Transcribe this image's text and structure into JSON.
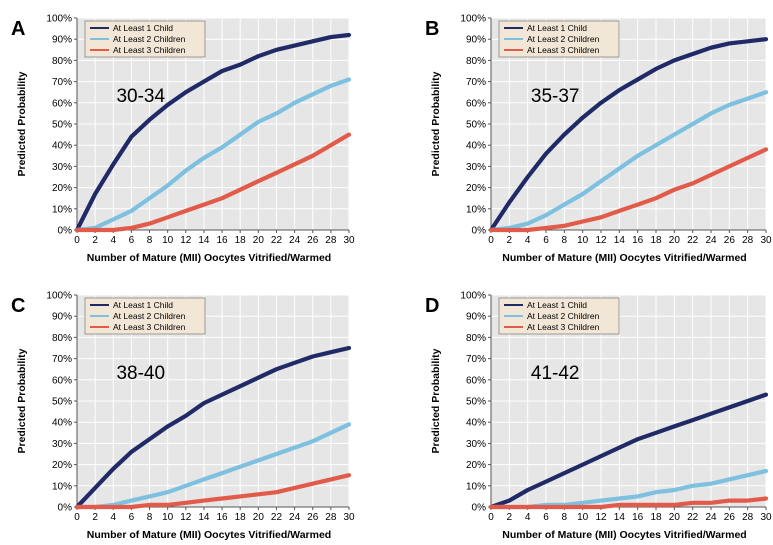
{
  "colors": {
    "series1": "#202a66",
    "series2": "#7ec0e0",
    "series3": "#e15a4a",
    "plot_bg": "#e6e6e6",
    "grid": "#ffffff",
    "legend_bg": "#f2e6d6"
  },
  "chart_data": [
    {
      "type": "line",
      "panel": "A",
      "age_group": "30-34",
      "xlabel": "Number of Mature (MII) Oocytes Vitrified/Warmed",
      "ylabel": "Predicted Probability",
      "xlim": [
        0,
        30
      ],
      "ylim": [
        0,
        100
      ],
      "x_ticks": [
        0,
        2,
        4,
        6,
        8,
        10,
        12,
        14,
        16,
        18,
        20,
        22,
        24,
        26,
        28,
        30
      ],
      "y_ticks": [
        "0%",
        "10%",
        "20%",
        "30%",
        "40%",
        "50%",
        "60%",
        "70%",
        "80%",
        "90%",
        "100%"
      ],
      "grid": true,
      "legend_position": "top-left",
      "x": [
        0,
        2,
        4,
        6,
        8,
        10,
        12,
        14,
        16,
        18,
        20,
        22,
        24,
        26,
        28,
        30
      ],
      "series": [
        {
          "name": "At Least 1 Child",
          "values": [
            0,
            17,
            31,
            44,
            52,
            59,
            65,
            70,
            75,
            78,
            82,
            85,
            87,
            89,
            91,
            92
          ]
        },
        {
          "name": "At Least 2 Children",
          "values": [
            0,
            1,
            5,
            9,
            15,
            21,
            28,
            34,
            39,
            45,
            51,
            55,
            60,
            64,
            68,
            71
          ]
        },
        {
          "name": "At Least 3 Children",
          "values": [
            0,
            0,
            0,
            1,
            3,
            6,
            9,
            12,
            15,
            19,
            23,
            27,
            31,
            35,
            40,
            45
          ]
        }
      ]
    },
    {
      "type": "line",
      "panel": "B",
      "age_group": "35-37",
      "xlabel": "Number of Mature (MII) Oocytes Vitrified/Warmed",
      "ylabel": "Predicted Probability",
      "xlim": [
        0,
        30
      ],
      "ylim": [
        0,
        100
      ],
      "x_ticks": [
        0,
        2,
        4,
        6,
        8,
        10,
        12,
        14,
        16,
        18,
        20,
        22,
        24,
        26,
        28,
        30
      ],
      "y_ticks": [
        "0%",
        "10%",
        "20%",
        "30%",
        "40%",
        "50%",
        "60%",
        "70%",
        "80%",
        "90%",
        "100%"
      ],
      "grid": true,
      "legend_position": "top-left",
      "x": [
        0,
        2,
        4,
        6,
        8,
        10,
        12,
        14,
        16,
        18,
        20,
        22,
        24,
        26,
        28,
        30
      ],
      "series": [
        {
          "name": "At Least 1 Child",
          "values": [
            0,
            13,
            25,
            36,
            45,
            53,
            60,
            66,
            71,
            76,
            80,
            83,
            86,
            88,
            89,
            90
          ]
        },
        {
          "name": "At Least 2 Children",
          "values": [
            0,
            1,
            3,
            7,
            12,
            17,
            23,
            29,
            35,
            40,
            45,
            50,
            55,
            59,
            62,
            65
          ]
        },
        {
          "name": "At Least 3 Children",
          "values": [
            0,
            0,
            0,
            1,
            2,
            4,
            6,
            9,
            12,
            15,
            19,
            22,
            26,
            30,
            34,
            38
          ]
        }
      ]
    },
    {
      "type": "line",
      "panel": "C",
      "age_group": "38-40",
      "xlabel": "Number of Mature (MII) Oocytes Vitrified/Warmed",
      "ylabel": "Predicted Probability",
      "xlim": [
        0,
        30
      ],
      "ylim": [
        0,
        100
      ],
      "x_ticks": [
        0,
        2,
        4,
        6,
        8,
        10,
        12,
        14,
        16,
        18,
        20,
        22,
        24,
        26,
        28,
        30
      ],
      "y_ticks": [
        "0%",
        "10%",
        "20%",
        "30%",
        "40%",
        "50%",
        "60%",
        "70%",
        "80%",
        "90%",
        "100%"
      ],
      "grid": true,
      "legend_position": "top-left",
      "x": [
        0,
        2,
        4,
        6,
        8,
        10,
        12,
        14,
        16,
        18,
        20,
        22,
        24,
        26,
        28,
        30
      ],
      "series": [
        {
          "name": "At Least 1 Child",
          "values": [
            0,
            9,
            18,
            26,
            32,
            38,
            43,
            49,
            53,
            57,
            61,
            65,
            68,
            71,
            73,
            75
          ]
        },
        {
          "name": "At Least 2 Children",
          "values": [
            0,
            0,
            1,
            3,
            5,
            7,
            10,
            13,
            16,
            19,
            22,
            25,
            28,
            31,
            35,
            39
          ]
        },
        {
          "name": "At Least 3 Children",
          "values": [
            0,
            0,
            0,
            0,
            1,
            1,
            2,
            3,
            4,
            5,
            6,
            7,
            9,
            11,
            13,
            15
          ]
        }
      ]
    },
    {
      "type": "line",
      "panel": "D",
      "age_group": "41-42",
      "xlabel": "Number of Mature (MII) Oocytes Vitrified/Warmed",
      "ylabel": "Predicted Probability",
      "xlim": [
        0,
        30
      ],
      "ylim": [
        0,
        100
      ],
      "x_ticks": [
        0,
        2,
        4,
        6,
        8,
        10,
        12,
        14,
        16,
        18,
        20,
        22,
        24,
        26,
        28,
        30
      ],
      "y_ticks": [
        "0%",
        "10%",
        "20%",
        "30%",
        "40%",
        "50%",
        "60%",
        "70%",
        "80%",
        "90%",
        "100%"
      ],
      "grid": true,
      "legend_position": "top-left",
      "x": [
        0,
        2,
        4,
        6,
        8,
        10,
        12,
        14,
        16,
        18,
        20,
        22,
        24,
        26,
        28,
        30
      ],
      "series": [
        {
          "name": "At Least 1 Child",
          "values": [
            0,
            3,
            8,
            12,
            16,
            20,
            24,
            28,
            32,
            35,
            38,
            41,
            44,
            47,
            50,
            53
          ]
        },
        {
          "name": "At Least 2 Children",
          "values": [
            0,
            0,
            0,
            1,
            1,
            2,
            3,
            4,
            5,
            7,
            8,
            10,
            11,
            13,
            15,
            17
          ]
        },
        {
          "name": "At Least 3 Children",
          "values": [
            0,
            0,
            0,
            0,
            0,
            0,
            0,
            1,
            1,
            1,
            1,
            2,
            2,
            3,
            3,
            4
          ]
        }
      ]
    }
  ]
}
